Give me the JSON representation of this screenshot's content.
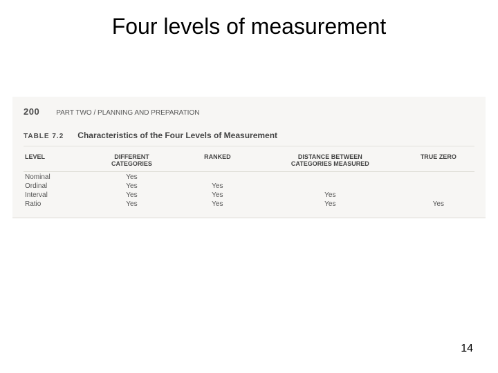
{
  "slide": {
    "title": "Four levels of measurement",
    "title_fontsize": 32,
    "title_fontweight": "400",
    "page_number": "14",
    "page_number_fontsize": 16,
    "background_color": "#ffffff"
  },
  "scan": {
    "background_color": "#f7f6f4",
    "page_no": "200",
    "page_no_fontsize": 13,
    "page_no_fontweight": "700",
    "part_label": "PART TWO / PLANNING AND PREPARATION",
    "part_fontsize": 10,
    "part_fontweight": "400",
    "table_no": "TABLE 7.2",
    "table_no_fontsize": 10,
    "table_no_fontweight": "700",
    "table_title": "Characteristics of the Four Levels of Measurement",
    "table_title_fontsize": 12,
    "table_title_fontweight": "700"
  },
  "table": {
    "type": "table",
    "header_fontsize": 9,
    "header_fontweight": "700",
    "body_fontsize": 10,
    "columns": [
      "LEVEL",
      "DIFFERENT CATEGORIES",
      "RANKED",
      "DISTANCE BETWEEN CATEGORIES MEASURED",
      "TRUE ZERO"
    ],
    "col_widths": [
      "14%",
      "20%",
      "18%",
      "32%",
      "16%"
    ],
    "hdr_line1": {
      "c0": "",
      "c1": "DIFFERENT",
      "c2": "",
      "c3": "DISTANCE BETWEEN",
      "c4": ""
    },
    "hdr_line2": {
      "c0": "LEVEL",
      "c1": "CATEGORIES",
      "c2": "RANKED",
      "c3": "CATEGORIES MEASURED",
      "c4": "TRUE ZERO"
    },
    "rows": [
      {
        "level": "Nominal",
        "diff": "Yes",
        "ranked": "",
        "dist": "",
        "zero": ""
      },
      {
        "level": "Ordinal",
        "diff": "Yes",
        "ranked": "Yes",
        "dist": "",
        "zero": ""
      },
      {
        "level": "Interval",
        "diff": "Yes",
        "ranked": "Yes",
        "dist": "Yes",
        "zero": ""
      },
      {
        "level": "Ratio",
        "diff": "Yes",
        "ranked": "Yes",
        "dist": "Yes",
        "zero": "Yes"
      }
    ]
  }
}
